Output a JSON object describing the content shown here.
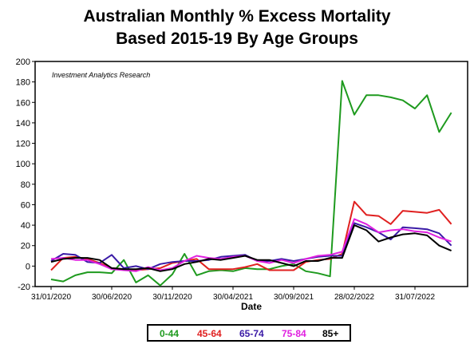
{
  "chart_data": {
    "type": "line",
    "title_lines": [
      "Australian Monthly % Excess Mortality",
      "Based 2015-19 By Age Groups"
    ],
    "annotation": "Investment Analytics Research",
    "xlabel": "Date",
    "ylabel": "",
    "ylim": [
      -20,
      200
    ],
    "yticks": [
      -20,
      0,
      20,
      40,
      60,
      80,
      100,
      120,
      140,
      160,
      180,
      200
    ],
    "x_tick_labels": [
      "31/01/2020",
      "30/06/2020",
      "30/11/2020",
      "30/04/2021",
      "30/09/2021",
      "28/02/2022",
      "31/07/2022"
    ],
    "x_tick_months": [
      "2020-01",
      "2020-06",
      "2020-11",
      "2021-04",
      "2021-09",
      "2022-02",
      "2022-07"
    ],
    "x": [
      "2020-01",
      "2020-02",
      "2020-03",
      "2020-04",
      "2020-05",
      "2020-06",
      "2020-07",
      "2020-08",
      "2020-09",
      "2020-10",
      "2020-11",
      "2020-12",
      "2021-01",
      "2021-02",
      "2021-03",
      "2021-04",
      "2021-05",
      "2021-06",
      "2021-07",
      "2021-08",
      "2021-09",
      "2021-10",
      "2021-11",
      "2021-12",
      "2022-01",
      "2022-02",
      "2022-03",
      "2022-04",
      "2022-05",
      "2022-06",
      "2022-07",
      "2022-08",
      "2022-09",
      "2022-10"
    ],
    "grid": false,
    "legend_position": "bottom",
    "series": [
      {
        "name": "0-44",
        "color": "#1e9a1e",
        "values": [
          -13,
          -15,
          -9,
          -6,
          -6,
          -7,
          6,
          -16,
          -9,
          -19,
          -8,
          12,
          -9,
          -5,
          -4,
          -5,
          -2,
          -3,
          -3,
          0,
          2,
          -5,
          -7,
          -10,
          181,
          148,
          167,
          167,
          165,
          162,
          154,
          167,
          131,
          150
        ]
      },
      {
        "name": "45-64",
        "color": "#e02020",
        "values": [
          -4,
          8,
          9,
          7,
          3,
          -2,
          -3,
          -4,
          -3,
          -2,
          3,
          5,
          7,
          -3,
          -3,
          -3,
          -1,
          2,
          -4,
          -4,
          -4,
          4,
          6,
          7,
          12,
          63,
          50,
          49,
          41,
          54,
          53,
          52,
          55,
          41
        ]
      },
      {
        "name": "65-74",
        "color": "#3a1aa6",
        "values": [
          5,
          12,
          11,
          4,
          3,
          11,
          -2,
          0,
          -3,
          2,
          4,
          5,
          5,
          6,
          9,
          10,
          11,
          5,
          5,
          7,
          5,
          7,
          9,
          10,
          10,
          42,
          38,
          33,
          26,
          38,
          37,
          36,
          32,
          20
        ]
      },
      {
        "name": "75-84",
        "color": "#e020e0",
        "values": [
          7,
          8,
          6,
          6,
          2,
          -3,
          -4,
          -5,
          -1,
          -4,
          -2,
          5,
          10,
          8,
          7,
          9,
          10,
          5,
          3,
          6,
          3,
          7,
          10,
          11,
          14,
          46,
          41,
          33,
          35,
          36,
          34,
          33,
          28,
          24
        ]
      },
      {
        "name": "85+",
        "color": "#000000",
        "values": [
          4,
          7,
          8,
          8,
          6,
          -2,
          -3,
          -3,
          -2,
          -5,
          -3,
          2,
          4,
          7,
          6,
          8,
          10,
          6,
          6,
          3,
          0,
          5,
          5,
          8,
          8,
          40,
          35,
          24,
          28,
          31,
          32,
          30,
          20,
          15
        ]
      }
    ]
  }
}
